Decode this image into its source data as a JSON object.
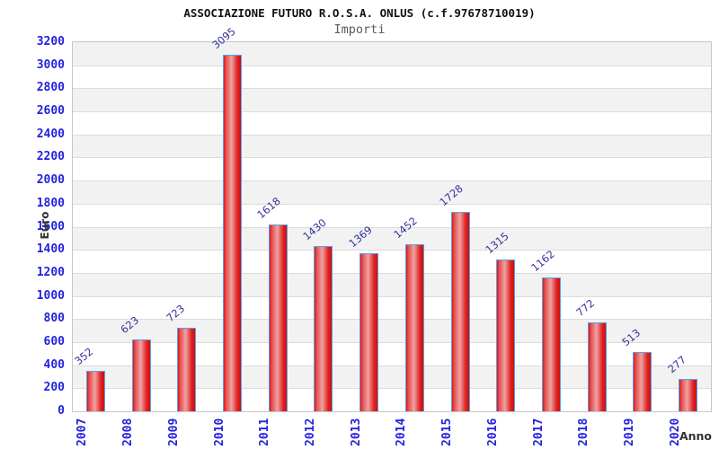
{
  "header": {
    "title": "ASSOCIAZIONE FUTURO R.O.S.A. ONLUS (c.f.97678710019)",
    "subtitle": "Importi"
  },
  "chart_data": {
    "type": "bar",
    "title": "ASSOCIAZIONE FUTURO R.O.S.A. ONLUS (c.f.97678710019)",
    "subtitle": "Importi",
    "categories": [
      "2007",
      "2008",
      "2009",
      "2010",
      "2011",
      "2012",
      "2013",
      "2014",
      "2015",
      "2016",
      "2017",
      "2018",
      "2019",
      "2020"
    ],
    "values": [
      352,
      623,
      723,
      3095,
      1618,
      1430,
      1369,
      1452,
      1728,
      1315,
      1162,
      772,
      513,
      277
    ],
    "xlabel": "Anno",
    "ylabel": "Euro",
    "ylim": [
      0,
      3200
    ],
    "ytick_step": 200,
    "yticks": [
      0,
      200,
      400,
      600,
      800,
      1000,
      1200,
      1400,
      1600,
      1800,
      2000,
      2200,
      2400,
      2600,
      2800,
      3000,
      3200
    ],
    "grid": true,
    "legend_position": "none",
    "colors": {
      "bar_fill": "#e22020",
      "bar_highlight": "#eda4a4",
      "bar_border": "#55a2e8",
      "tick_label": "#2222dd",
      "value_label": "#333399",
      "band_gray": "#f2f2f2",
      "band_white": "#ffffff",
      "grid_line": "#dcdcdc",
      "plot_border": "#c6c6c6",
      "title": "#111111",
      "subtitle": "#5a5a5a",
      "axis_title": "#333333",
      "background": "#ffffff"
    }
  }
}
